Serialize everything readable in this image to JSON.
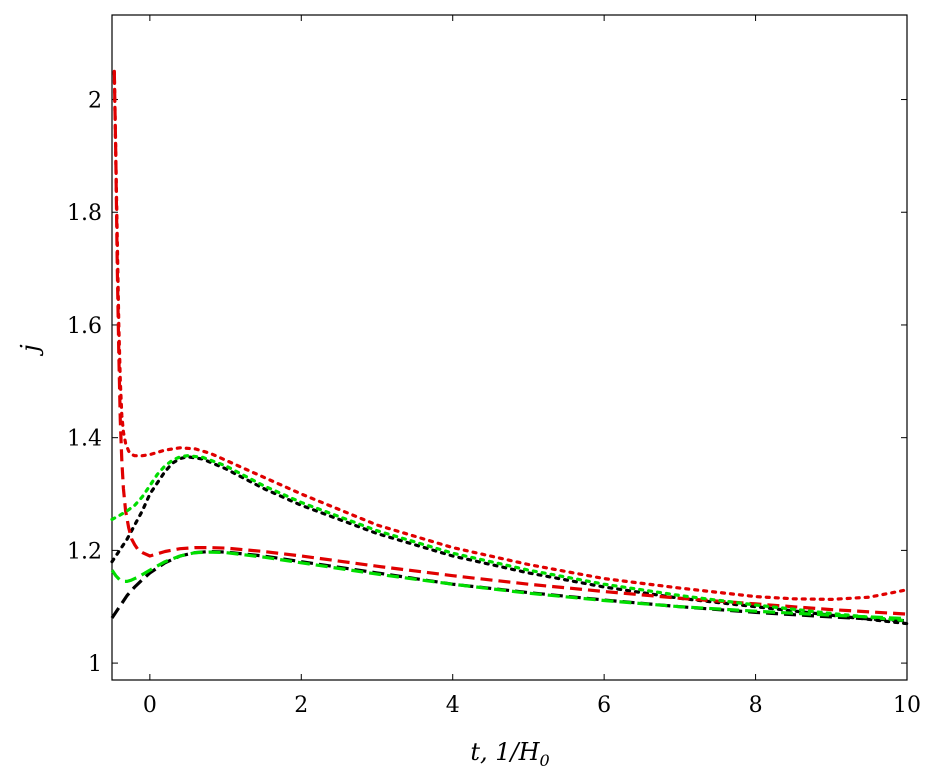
{
  "chart_data": {
    "type": "line",
    "title": "",
    "xlabel": "t, 1/H",
    "xlabel_sub": "0",
    "ylabel": "j",
    "xlim": [
      -0.5,
      10
    ],
    "ylim": [
      0.97,
      2.15
    ],
    "xticks": [
      0,
      2,
      4,
      6,
      8,
      10
    ],
    "yticks": [
      1,
      1.2,
      1.4,
      1.6,
      1.8,
      2
    ],
    "xtick_labels": [
      "0",
      "2",
      "4",
      "6",
      "8",
      "10"
    ],
    "ytick_labels": [
      "1",
      "1.2",
      "1.4",
      "1.6",
      "1.8",
      "2"
    ],
    "grid": false,
    "legend": "none",
    "series": [
      {
        "color": "#000000",
        "style": "dashed",
        "x": [
          -0.5,
          -0.4,
          -0.3,
          -0.2,
          -0.1,
          0,
          0.2,
          0.4,
          0.6,
          0.8,
          1,
          1.5,
          2,
          3,
          4,
          5,
          6,
          7,
          8,
          9,
          10
        ],
        "y": [
          1.08,
          1.1,
          1.12,
          1.135,
          1.148,
          1.16,
          1.178,
          1.19,
          1.196,
          1.198,
          1.197,
          1.19,
          1.18,
          1.16,
          1.14,
          1.125,
          1.112,
          1.1,
          1.09,
          1.082,
          1.075
        ]
      },
      {
        "color": "#000000",
        "style": "dotted",
        "x": [
          -0.5,
          -0.4,
          -0.3,
          -0.2,
          -0.1,
          0,
          0.1,
          0.2,
          0.3,
          0.4,
          0.5,
          0.7,
          1,
          1.5,
          2,
          3,
          4,
          5,
          6,
          7,
          8,
          9,
          10
        ],
        "y": [
          1.18,
          1.2,
          1.22,
          1.245,
          1.27,
          1.3,
          1.32,
          1.34,
          1.355,
          1.363,
          1.366,
          1.362,
          1.345,
          1.31,
          1.28,
          1.23,
          1.19,
          1.16,
          1.135,
          1.115,
          1.1,
          1.085,
          1.07
        ]
      },
      {
        "color": "#e00000",
        "style": "dashed",
        "x": [
          -0.47,
          -0.45,
          -0.43,
          -0.41,
          -0.39,
          -0.37,
          -0.35,
          -0.32,
          -0.28,
          -0.24,
          -0.2,
          -0.15,
          -0.1,
          0,
          0.2,
          0.4,
          0.6,
          0.8,
          1,
          1.5,
          2,
          3,
          4,
          5,
          6,
          7,
          8,
          9,
          10
        ],
        "y": [
          2.05,
          1.9,
          1.7,
          1.55,
          1.43,
          1.36,
          1.31,
          1.27,
          1.24,
          1.22,
          1.21,
          1.2,
          1.196,
          1.19,
          1.198,
          1.203,
          1.205,
          1.205,
          1.204,
          1.198,
          1.19,
          1.172,
          1.155,
          1.14,
          1.127,
          1.115,
          1.105,
          1.095,
          1.087
        ]
      },
      {
        "color": "#e00000",
        "style": "dotted",
        "x": [
          -0.47,
          -0.45,
          -0.43,
          -0.41,
          -0.39,
          -0.37,
          -0.35,
          -0.32,
          -0.28,
          -0.24,
          -0.2,
          -0.15,
          -0.1,
          0,
          0.2,
          0.4,
          0.6,
          0.8,
          1,
          1.5,
          2,
          3,
          4,
          5,
          6,
          7,
          8,
          8.5,
          9,
          9.5,
          10
        ],
        "y": [
          2.05,
          1.9,
          1.75,
          1.6,
          1.5,
          1.44,
          1.41,
          1.39,
          1.376,
          1.37,
          1.368,
          1.368,
          1.368,
          1.37,
          1.378,
          1.382,
          1.38,
          1.372,
          1.36,
          1.33,
          1.3,
          1.245,
          1.205,
          1.175,
          1.15,
          1.133,
          1.118,
          1.114,
          1.113,
          1.117,
          1.13
        ]
      },
      {
        "color": "#00dd00",
        "style": "dashed",
        "x": [
          -0.5,
          -0.45,
          -0.4,
          -0.35,
          -0.3,
          -0.25,
          -0.2,
          -0.15,
          -0.1,
          0,
          0.2,
          0.4,
          0.6,
          0.8,
          1,
          1.5,
          2,
          3,
          4,
          5,
          6,
          7,
          8,
          9,
          10
        ],
        "y": [
          1.165,
          1.155,
          1.148,
          1.145,
          1.145,
          1.147,
          1.15,
          1.153,
          1.157,
          1.165,
          1.18,
          1.19,
          1.196,
          1.197,
          1.196,
          1.188,
          1.178,
          1.158,
          1.14,
          1.124,
          1.111,
          1.1,
          1.092,
          1.085,
          1.079
        ]
      },
      {
        "color": "#00dd00",
        "style": "dotted",
        "x": [
          -0.5,
          -0.4,
          -0.3,
          -0.2,
          -0.1,
          0,
          0.1,
          0.2,
          0.3,
          0.4,
          0.5,
          0.7,
          1,
          1.5,
          2,
          3,
          4,
          5,
          6,
          7,
          8,
          9,
          10
        ],
        "y": [
          1.255,
          1.262,
          1.27,
          1.28,
          1.295,
          1.315,
          1.335,
          1.35,
          1.36,
          1.366,
          1.368,
          1.365,
          1.35,
          1.315,
          1.285,
          1.235,
          1.195,
          1.165,
          1.14,
          1.12,
          1.103,
          1.088,
          1.075
        ]
      }
    ]
  }
}
